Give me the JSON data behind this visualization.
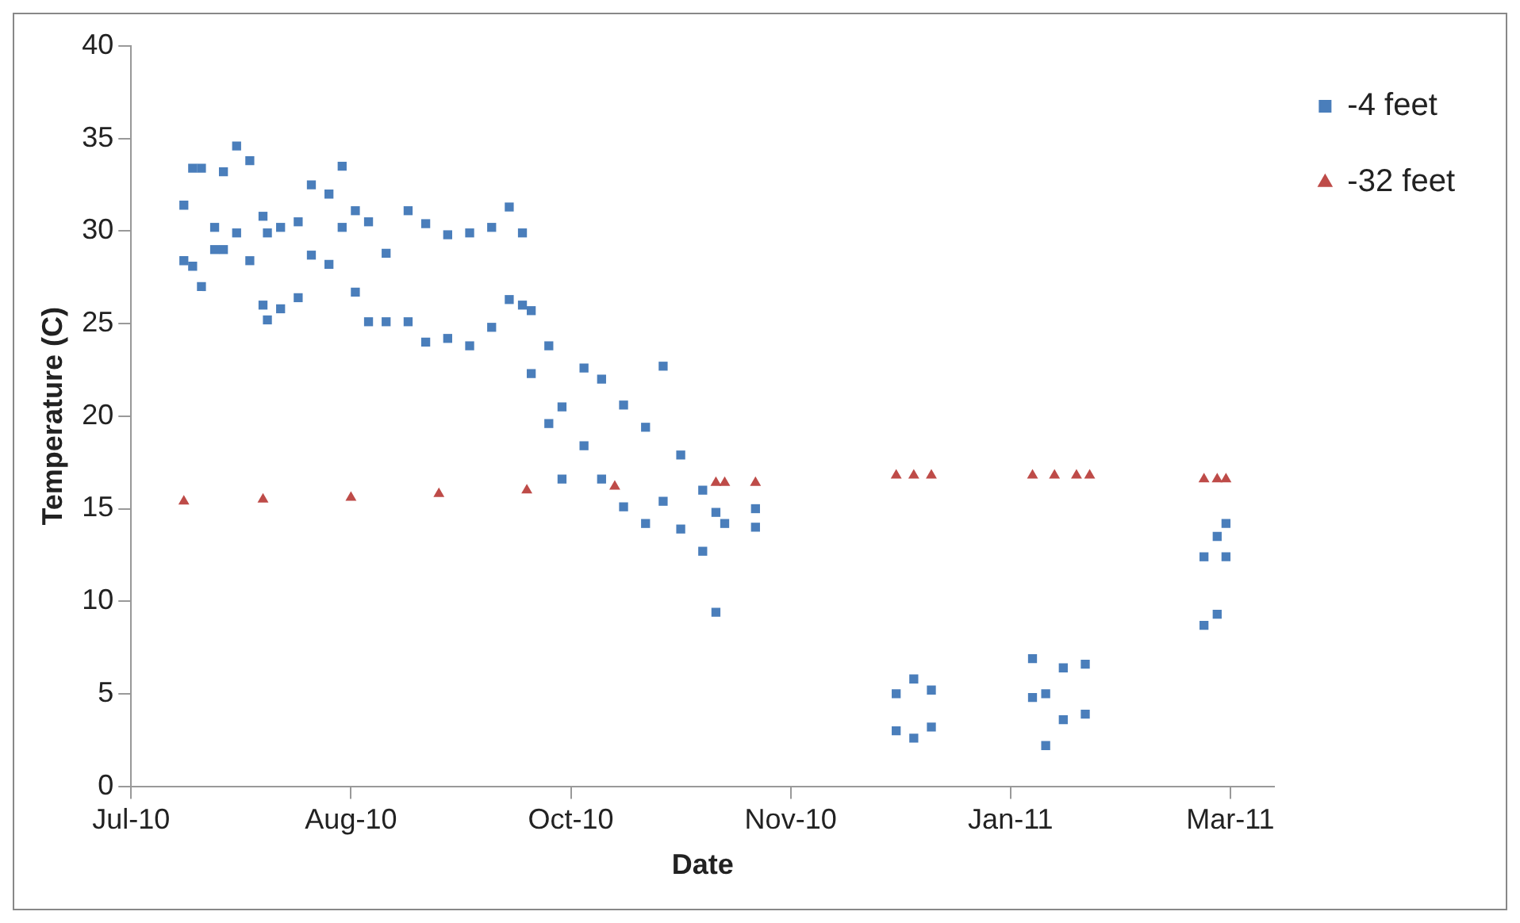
{
  "chart_data": {
    "type": "scatter",
    "xlabel": "Date",
    "ylabel": "Temperature (C)",
    "xlim": [
      "2010-07-01",
      "2011-03-18"
    ],
    "xticks": [
      {
        "value": "2010-07-01",
        "label": "Jul-10"
      },
      {
        "value": "2010-08-20",
        "label": "Aug-10"
      },
      {
        "value": "2010-10-09",
        "label": "Oct-10"
      },
      {
        "value": "2010-11-28",
        "label": "Nov-10"
      },
      {
        "value": "2011-01-17",
        "label": "Jan-11"
      },
      {
        "value": "2011-03-08",
        "label": "Mar-11"
      }
    ],
    "ylim": [
      0,
      40
    ],
    "yticks": [
      0,
      5,
      10,
      15,
      20,
      25,
      30,
      35,
      40
    ],
    "grid": false,
    "legend": "right",
    "series": [
      {
        "name": "-4 feet",
        "color": "#4a7ebb",
        "marker": "square",
        "x": [
          "2010-07-13",
          "2010-07-13",
          "2010-07-15",
          "2010-07-15",
          "2010-07-17",
          "2010-07-17",
          "2010-07-20",
          "2010-07-20",
          "2010-07-22",
          "2010-07-22",
          "2010-07-25",
          "2010-07-25",
          "2010-07-28",
          "2010-07-28",
          "2010-07-31",
          "2010-07-31",
          "2010-08-01",
          "2010-08-01",
          "2010-08-04",
          "2010-08-04",
          "2010-08-08",
          "2010-08-08",
          "2010-08-11",
          "2010-08-11",
          "2010-08-15",
          "2010-08-15",
          "2010-08-18",
          "2010-08-18",
          "2010-08-21",
          "2010-08-21",
          "2010-08-24",
          "2010-08-24",
          "2010-08-28",
          "2010-08-28",
          "2010-09-02",
          "2010-09-02",
          "2010-09-06",
          "2010-09-06",
          "2010-09-11",
          "2010-09-11",
          "2010-09-16",
          "2010-09-16",
          "2010-09-21",
          "2010-09-21",
          "2010-09-25",
          "2010-09-25",
          "2010-09-28",
          "2010-09-28",
          "2010-09-30",
          "2010-09-30",
          "2010-10-04",
          "2010-10-04",
          "2010-10-07",
          "2010-10-07",
          "2010-10-12",
          "2010-10-12",
          "2010-10-16",
          "2010-10-16",
          "2010-10-21",
          "2010-10-21",
          "2010-10-26",
          "2010-10-26",
          "2010-10-30",
          "2010-10-30",
          "2010-11-03",
          "2010-11-03",
          "2010-11-08",
          "2010-11-08",
          "2010-11-11",
          "2010-11-11",
          "2010-11-13",
          "2010-11-20",
          "2010-11-20",
          "2010-12-22",
          "2010-12-22",
          "2010-12-26",
          "2010-12-26",
          "2010-12-30",
          "2010-12-30",
          "2011-01-22",
          "2011-01-22",
          "2011-01-25",
          "2011-01-25",
          "2011-01-29",
          "2011-01-29",
          "2011-02-03",
          "2011-02-03",
          "2011-03-02",
          "2011-03-02",
          "2011-03-05",
          "2011-03-05",
          "2011-03-07",
          "2011-03-07"
        ],
        "values": [
          31.4,
          28.4,
          33.4,
          28.1,
          33.4,
          27.0,
          30.2,
          29.0,
          33.2,
          29.0,
          34.6,
          29.9,
          33.8,
          28.4,
          30.8,
          26.0,
          29.9,
          25.2,
          30.2,
          25.8,
          30.5,
          26.4,
          32.5,
          28.7,
          32.0,
          28.2,
          33.5,
          30.2,
          31.1,
          26.7,
          30.5,
          25.1,
          28.8,
          25.1,
          31.1,
          25.1,
          30.4,
          24.0,
          29.8,
          24.2,
          29.9,
          23.8,
          30.2,
          24.8,
          31.3,
          26.3,
          29.9,
          26.0,
          25.7,
          22.3,
          23.8,
          19.6,
          20.5,
          16.6,
          22.6,
          18.4,
          22.0,
          16.6,
          20.6,
          15.1,
          19.4,
          14.2,
          22.7,
          15.4,
          17.9,
          13.9,
          16.0,
          12.7,
          14.8,
          9.4,
          14.2,
          15.0,
          14.0,
          5.0,
          3.0,
          5.8,
          2.6,
          5.2,
          3.2,
          6.9,
          4.8,
          5.0,
          2.2,
          6.4,
          3.6,
          6.6,
          3.9,
          12.4,
          8.7,
          13.5,
          9.3,
          14.2,
          12.4
        ]
      },
      {
        "name": "-32 feet",
        "color": "#be4b48",
        "marker": "triangle",
        "x": [
          "2010-07-13",
          "2010-07-31",
          "2010-08-20",
          "2010-09-09",
          "2010-09-29",
          "2010-10-19",
          "2010-11-11",
          "2010-11-13",
          "2010-11-20",
          "2010-12-22",
          "2010-12-26",
          "2010-12-30",
          "2011-01-22",
          "2011-01-27",
          "2011-02-01",
          "2011-02-04",
          "2011-03-02",
          "2011-03-05",
          "2011-03-07"
        ],
        "values": [
          15.4,
          15.5,
          15.6,
          15.8,
          16.0,
          16.2,
          16.4,
          16.4,
          16.4,
          16.8,
          16.8,
          16.8,
          16.8,
          16.8,
          16.8,
          16.8,
          16.6,
          16.6,
          16.6
        ]
      }
    ]
  }
}
